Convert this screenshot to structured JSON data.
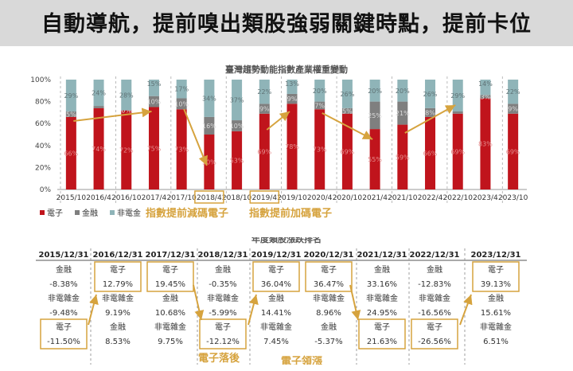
{
  "header": {
    "title": "自動導航，提前嗅出類股強弱關鍵時點，提前卡位"
  },
  "colors": {
    "electronics": "#c0141c",
    "finance": "#7f7f7f",
    "non_electronics": "#8fb4b8",
    "accent": "#d6a33e"
  },
  "chart_data": [
    {
      "type": "bar",
      "stacked": true,
      "title": "臺灣趨勢動能指數產業權重變動",
      "categories": [
        "2015/10",
        "2016/4",
        "2016/10",
        "2017/4",
        "2017/10",
        "2018/4",
        "2018/10",
        "2019/4",
        "2019/10",
        "2020/4",
        "2020/10",
        "2021/4",
        "2021/10",
        "2022/4",
        "2022/10",
        "2023/4",
        "2023/10"
      ],
      "series": [
        {
          "name": "電子",
          "values": [
            66,
            74,
            72,
            75,
            73,
            50,
            53,
            69,
            78,
            73,
            69,
            55,
            59,
            66,
            69,
            83,
            69
          ]
        },
        {
          "name": "金融",
          "values": [
            5,
            2,
            0,
            10,
            10,
            16,
            10,
            9,
            9,
            7,
            5,
            25,
            21,
            8,
            2,
            3,
            9
          ]
        },
        {
          "name": "非電金",
          "values": [
            29,
            24,
            28,
            15,
            17,
            34,
            37,
            22,
            13,
            20,
            26,
            20,
            20,
            26,
            29,
            14,
            22
          ]
        }
      ],
      "data_labels": {
        "電子": [
          "66%",
          "74%",
          "72%",
          "75%",
          "73%",
          "50%",
          "53%",
          "69%",
          "78%",
          "73%",
          "69%",
          "55%",
          "59%",
          "66%",
          "69%",
          "83%",
          "69%"
        ],
        "金融": [
          "5%",
          "",
          "0%",
          "10%",
          "10%",
          "16%",
          "10%",
          "9%",
          "9%",
          "7%",
          "5%",
          "25%",
          "21%",
          "8%",
          "",
          "3%",
          "9%"
        ],
        "非電金": [
          "29%",
          "24%",
          "28%",
          "15%",
          "17%",
          "34%",
          "37%",
          "22%",
          "13%",
          "20%",
          "26%",
          "20%",
          "20%",
          "26%",
          "29%",
          "14%",
          "22%"
        ]
      },
      "y_ticks": [
        "0%",
        "20%",
        "40%",
        "60%",
        "80%",
        "100%"
      ],
      "ylim": [
        0,
        100
      ],
      "legend": [
        "電子",
        "金融",
        "非電金"
      ],
      "highlighted_categories": [
        "2018/4",
        "2019/4"
      ],
      "annotations": [
        "指數提前減碼電子",
        "指數提前加碼電子"
      ]
    },
    {
      "type": "table",
      "title": "年度類股漲跌排名",
      "years": [
        {
          "date": "2015/12/31",
          "rows": [
            [
              "金融",
              "-8.38%"
            ],
            [
              "非電雜金",
              "-9.48%"
            ],
            [
              "電子",
              "-11.50%"
            ]
          ]
        },
        {
          "date": "2016/12/31",
          "rows": [
            [
              "電子",
              "12.79%"
            ],
            [
              "非電雜金",
              "9.19%"
            ],
            [
              "金融",
              "8.53%"
            ]
          ]
        },
        {
          "date": "2017/12/31",
          "rows": [
            [
              "電子",
              "19.45%"
            ],
            [
              "金融",
              "10.68%"
            ],
            [
              "非電雜金",
              "9.75%"
            ]
          ]
        },
        {
          "date": "2018/12/31",
          "rows": [
            [
              "金融",
              "-0.35%"
            ],
            [
              "非電雜金",
              "-5.99%"
            ],
            [
              "電子",
              "-12.12%"
            ]
          ]
        },
        {
          "date": "2019/12/31",
          "rows": [
            [
              "電子",
              "36.04%"
            ],
            [
              "金融",
              "14.41%"
            ],
            [
              "非電雜金",
              "7.45%"
            ]
          ]
        },
        {
          "date": "2020/12/31",
          "rows": [
            [
              "電子",
              "36.47%"
            ],
            [
              "非電雜金",
              "8.96%"
            ],
            [
              "金融",
              "-5.37%"
            ]
          ]
        },
        {
          "date": "2021/12/31",
          "rows": [
            [
              "金融",
              "33.16%"
            ],
            [
              "非電雜金",
              "24.95%"
            ],
            [
              "電子",
              "21.63%"
            ]
          ]
        },
        {
          "date": "2022/12/31",
          "rows": [
            [
              "金融",
              "-12.83%"
            ],
            [
              "非電雜金",
              "-16.56%"
            ],
            [
              "電子",
              "-26.56%"
            ]
          ]
        },
        {
          "date": "2023/12/31",
          "rows": [
            [
              "電子",
              "39.13%"
            ],
            [
              "金融",
              "15.61%"
            ],
            [
              "非電雜金",
              "6.51%"
            ]
          ]
        }
      ],
      "highlight_label": "電子",
      "annotations": [
        "電子落後",
        "電子領漲"
      ]
    }
  ]
}
